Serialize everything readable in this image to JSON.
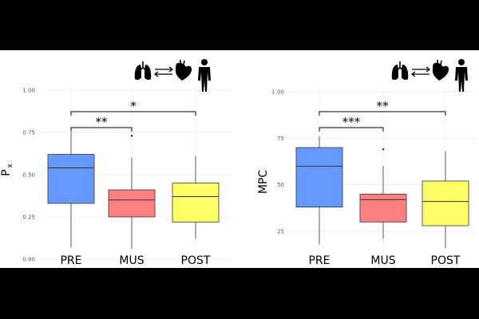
{
  "chart_data": [
    {
      "type": "box",
      "title": "",
      "xlabel": "",
      "ylabel": "P",
      "ylabel_subscript": "x",
      "categories": [
        "PRE",
        "MUS",
        "POST"
      ],
      "yticks": [
        "0.00",
        "0.25",
        "0.50",
        "0.75",
        "1.00"
      ],
      "ylim": [
        0,
        1
      ],
      "boxes": [
        {
          "name": "PRE",
          "min": 0.07,
          "q1": 0.33,
          "median": 0.54,
          "q3": 0.62,
          "max": 0.75,
          "color": "#6699FF",
          "outliers": []
        },
        {
          "name": "MUS",
          "min": 0.06,
          "q1": 0.25,
          "median": 0.35,
          "q3": 0.41,
          "max": 0.6,
          "color": "#FF8080",
          "outliers": [
            0.73
          ]
        },
        {
          "name": "POST",
          "min": 0.12,
          "q1": 0.22,
          "median": 0.37,
          "q3": 0.45,
          "max": 0.61,
          "color": "#FFFF66",
          "outliers": []
        }
      ],
      "significance": [
        {
          "from": "PRE",
          "to": "MUS",
          "label": "**"
        },
        {
          "from": "PRE",
          "to": "POST",
          "label": "*"
        }
      ],
      "icons": [
        "lungs-icon",
        "double-arrow-icon",
        "heart-icon",
        "person-icon"
      ]
    },
    {
      "type": "box",
      "title": "",
      "xlabel": "",
      "ylabel": "MPC",
      "categories": [
        "PRE",
        "MUS",
        "POST"
      ],
      "yticks": [
        "25",
        "50",
        "75",
        "1.00"
      ],
      "ylim": [
        10,
        100
      ],
      "boxes": [
        {
          "name": "PRE",
          "min": 18,
          "q1": 38,
          "median": 60,
          "q3": 70,
          "max": 76,
          "color": "#6699FF",
          "outliers": []
        },
        {
          "name": "MUS",
          "min": 21,
          "q1": 30,
          "median": 42,
          "q3": 45,
          "max": 60,
          "color": "#FF8080",
          "outliers": [
            69
          ]
        },
        {
          "name": "POST",
          "min": 16,
          "q1": 28,
          "median": 41,
          "q3": 52,
          "max": 68,
          "color": "#FFFF66",
          "outliers": []
        }
      ],
      "significance": [
        {
          "from": "PRE",
          "to": "MUS",
          "label": "***"
        },
        {
          "from": "PRE",
          "to": "POST",
          "label": "**"
        }
      ],
      "icons": [
        "lungs-icon",
        "double-arrow-icon",
        "heart-icon",
        "person-icon"
      ]
    }
  ]
}
